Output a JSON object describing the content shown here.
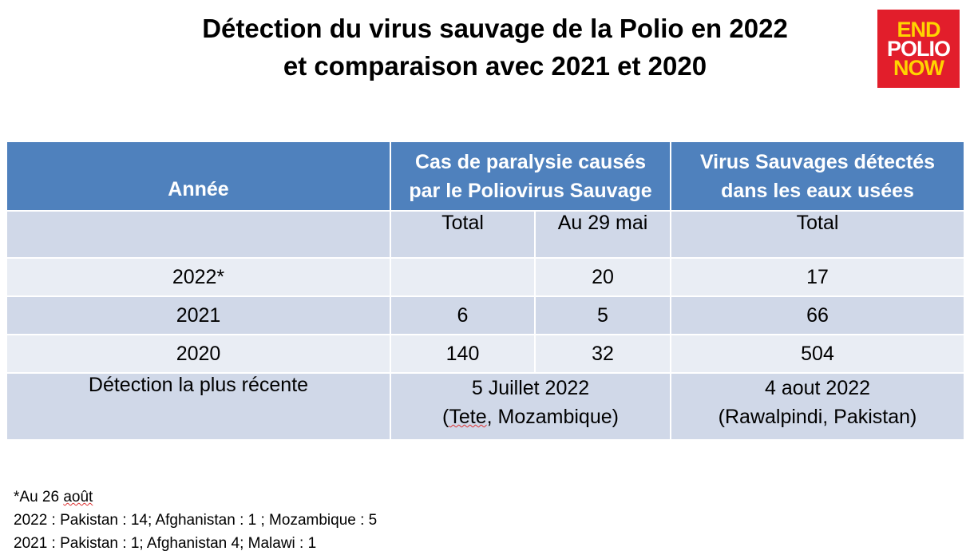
{
  "title": {
    "line1": "Détection du virus sauvage de la Polio en 2022",
    "line2": "et comparaison avec 2021 et 2020"
  },
  "logo": {
    "line1": "END",
    "line2": "POLIO",
    "line3": "NOW"
  },
  "table": {
    "header": {
      "year": "Année",
      "cases_line1": "Cas de paralysie causés",
      "cases_line2": "par le Poliovirus Sauvage",
      "env_line1": "Virus  Sauvages détectés",
      "env_line2": "dans les eaux usées"
    },
    "subheader": {
      "total": "Total",
      "au29mai": "Au 29 mai",
      "env_total": "Total"
    },
    "rows": [
      {
        "year": "2022*",
        "total": "",
        "au29mai": "20",
        "env": "17"
      },
      {
        "year": "2021",
        "total": "6",
        "au29mai": "5",
        "env": "66"
      },
      {
        "year": "2020",
        "total": "140",
        "au29mai": "32",
        "env": "504"
      }
    ],
    "recent": {
      "label": "Détection la plus récente",
      "cases_date": "5 Juillet 2022",
      "cases_place_open": "(",
      "cases_place_word": "Tete",
      "cases_place_rest": ", Mozambique)",
      "env_date": "4 aout 2022",
      "env_place": "(Rawalpindi, Pakistan)"
    }
  },
  "notes": {
    "note_prefix": "*Au 26 ",
    "note_word": "août",
    "line2": "2022 : Pakistan : 14; Afghanistan : 1 ; Mozambique : 5",
    "line3": "2021 : Pakistan : 1; Afghanistan 4; Malawi : 1"
  },
  "colors": {
    "header_bg": "#4f81bd",
    "row_dark": "#d0d8e8",
    "row_light": "#e9edf4",
    "logo_red": "#e21e2b",
    "logo_yellow": "#ffd400"
  }
}
